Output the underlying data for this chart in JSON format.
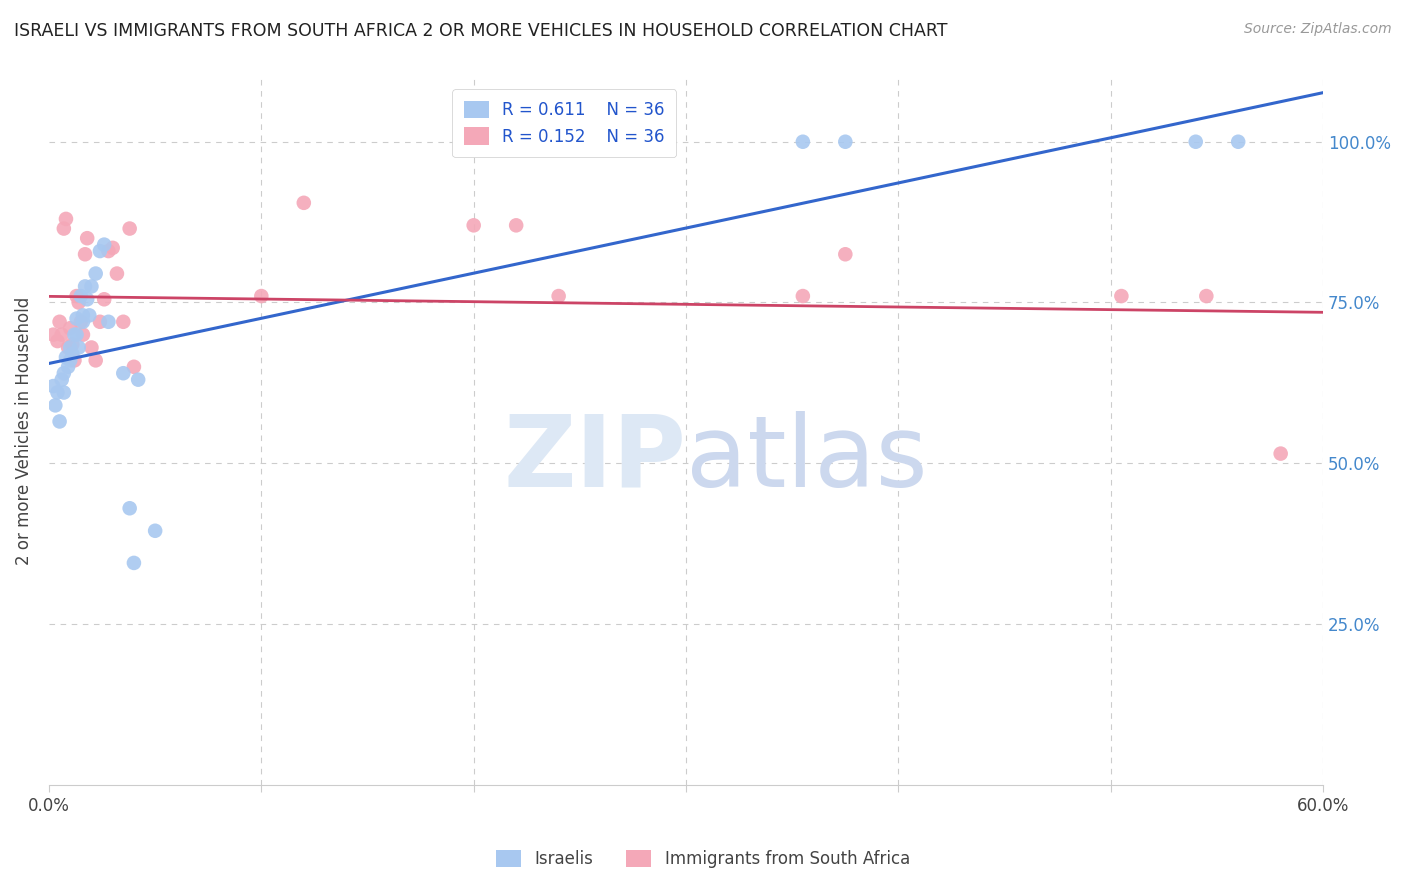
{
  "title": "ISRAELI VS IMMIGRANTS FROM SOUTH AFRICA 2 OR MORE VEHICLES IN HOUSEHOLD CORRELATION CHART",
  "source": "Source: ZipAtlas.com",
  "ylabel": "2 or more Vehicles in Household",
  "legend_label1": "Israelis",
  "legend_label2": "Immigrants from South Africa",
  "R1": 0.611,
  "N1": 36,
  "R2": 0.152,
  "N2": 36,
  "color_blue": "#a8c8f0",
  "color_pink": "#f4a8b8",
  "line_color_blue": "#3366cc",
  "line_color_pink": "#cc4466",
  "xlim": [
    0.0,
    0.6
  ],
  "ylim": [
    0.0,
    1.1
  ],
  "blue_x": [
    0.002,
    0.003,
    0.004,
    0.005,
    0.006,
    0.007,
    0.007,
    0.008,
    0.009,
    0.01,
    0.01,
    0.011,
    0.012,
    0.013,
    0.013,
    0.014,
    0.015,
    0.016,
    0.016,
    0.017,
    0.018,
    0.019,
    0.02,
    0.022,
    0.024,
    0.026,
    0.028,
    0.035,
    0.038,
    0.04,
    0.042,
    0.05,
    0.355,
    0.375,
    0.54,
    0.56
  ],
  "blue_y": [
    0.62,
    0.59,
    0.61,
    0.565,
    0.63,
    0.64,
    0.61,
    0.665,
    0.65,
    0.66,
    0.68,
    0.67,
    0.7,
    0.7,
    0.725,
    0.68,
    0.76,
    0.72,
    0.73,
    0.775,
    0.755,
    0.73,
    0.775,
    0.795,
    0.83,
    0.84,
    0.72,
    0.64,
    0.43,
    0.345,
    0.63,
    0.395,
    1.0,
    1.0,
    1.0,
    1.0
  ],
  "pink_x": [
    0.002,
    0.004,
    0.005,
    0.006,
    0.007,
    0.008,
    0.009,
    0.01,
    0.011,
    0.012,
    0.013,
    0.014,
    0.015,
    0.016,
    0.017,
    0.018,
    0.02,
    0.022,
    0.024,
    0.026,
    0.028,
    0.03,
    0.032,
    0.035,
    0.038,
    0.04,
    0.1,
    0.12,
    0.2,
    0.22,
    0.24,
    0.355,
    0.375,
    0.505,
    0.545,
    0.58
  ],
  "pink_y": [
    0.7,
    0.69,
    0.72,
    0.7,
    0.865,
    0.88,
    0.68,
    0.71,
    0.685,
    0.66,
    0.76,
    0.75,
    0.72,
    0.7,
    0.825,
    0.85,
    0.68,
    0.66,
    0.72,
    0.755,
    0.83,
    0.835,
    0.795,
    0.72,
    0.865,
    0.65,
    0.76,
    0.905,
    0.87,
    0.87,
    0.76,
    0.76,
    0.825,
    0.76,
    0.76,
    0.515
  ],
  "grid_color": "#cccccc",
  "bg_color": "#ffffff",
  "watermark_zip_color": "#d0dcf0",
  "watermark_atlas_color": "#c0d0e8"
}
